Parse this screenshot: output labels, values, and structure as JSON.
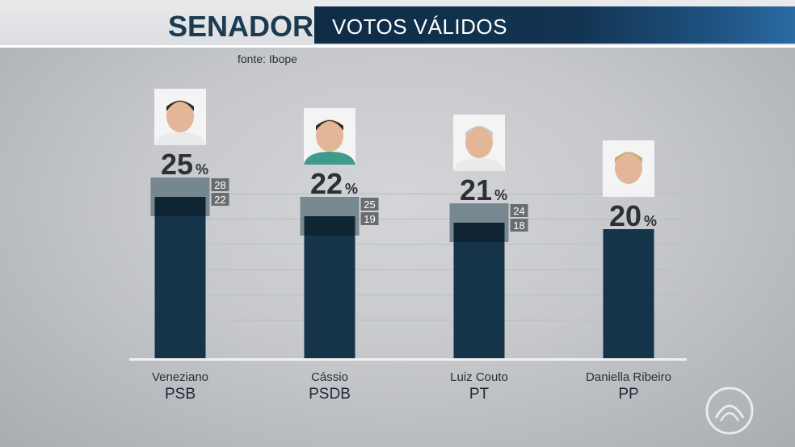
{
  "header": {
    "title": "SENADOR",
    "subtitle": "VOTOS VÁLIDOS",
    "source": "fonte: Ibope"
  },
  "colors": {
    "bar": "#163449",
    "margin_band": "#6e7f8a",
    "label_box": "#6a6d70",
    "text_dark": "#2d3135"
  },
  "chart_data": {
    "type": "bar",
    "unit": "%",
    "ylim": [
      0,
      28
    ],
    "categories": [
      "Veneziano",
      "Cássio",
      "Luiz Couto",
      "Daniella Ribeiro"
    ],
    "parties": [
      "PSB",
      "PSDB",
      "PT",
      "PP"
    ],
    "values": [
      25,
      22,
      21,
      20
    ],
    "margin_high": [
      28,
      25,
      24,
      null
    ],
    "margin_low": [
      22,
      19,
      18,
      null
    ],
    "photos": [
      "veneziano-photo",
      "cassio-photo",
      "luiz-couto-photo",
      "daniella-ribeiro-photo"
    ]
  }
}
